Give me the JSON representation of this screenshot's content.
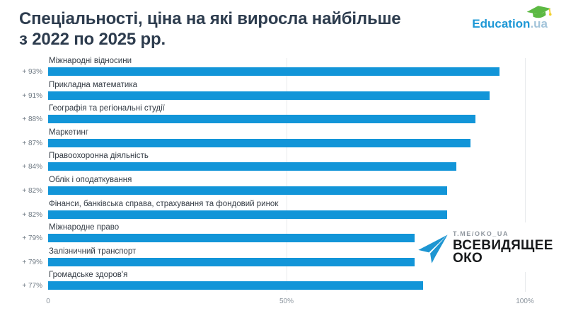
{
  "title": {
    "line1": "Спеціальності, ціна на які виросла найбільше",
    "line2": "з 2022 по 2025 рр."
  },
  "logo": {
    "brand": "Education",
    "tld": ".ua",
    "cap_icon": "graduation-cap-icon"
  },
  "chart_data": {
    "type": "bar",
    "orientation": "horizontal",
    "title": "Спеціальності, ціна на які виросла найбільше з 2022 по 2025 рр.",
    "categories": [
      "Міжнародні відносини",
      "Прикладна математика",
      "Географія та регіональні студії",
      "Маркетинг",
      "Правоохоронна діяльність",
      "Облік і оподаткування",
      "Фінанси, банківська справа, страхування та фондовий ринок",
      "Міжнародне право",
      "Залізничний транспорт",
      "Громадське здоров'я"
    ],
    "values": [
      93,
      91,
      88,
      87,
      84,
      82,
      82,
      79,
      79,
      77
    ],
    "value_labels": [
      "+ 93%",
      "+ 91%",
      "+ 88%",
      "+ 87%",
      "+ 84%",
      "+ 82%",
      "+ 82%",
      "+ 79%",
      "+ 79%",
      "+ 77%"
    ],
    "xlabel": "",
    "ylabel": "",
    "xlim": [
      0,
      100
    ],
    "x_ticks": [
      "0",
      "50%",
      "100%"
    ],
    "x_tick_positions": [
      0,
      50,
      100
    ],
    "grid": "vertical-light",
    "legend": "none",
    "bar_color": "#1295d8"
  },
  "watermark": {
    "handle": "T.ME/OKO_UA",
    "name_line1": "ВСЕВИДЯЩЕЕ",
    "name_line2": "ОКО",
    "plane_icon": "paper-plane-icon"
  },
  "colors": {
    "background": "#ffffff",
    "title_text": "#2d3c4e",
    "bar": "#1295d8",
    "percent_label": "#6e7983",
    "category_label": "#333b44",
    "axis_label": "#8b949d",
    "gridline": "#e8eaec",
    "logo_blue": "#1e98d6",
    "logo_tld": "#a3c4da",
    "logo_green": "#5cb943",
    "tassel_yellow": "#f2d02e",
    "watermark_blue": "#1e96d2",
    "watermark_black": "#17191b"
  }
}
